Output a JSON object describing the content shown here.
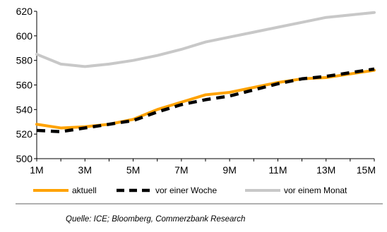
{
  "chart_data": {
    "type": "line",
    "x": [
      "1M",
      "2M",
      "3M",
      "4M",
      "5M",
      "6M",
      "7M",
      "8M",
      "9M",
      "10M",
      "11M",
      "12M",
      "13M",
      "14M",
      "15M"
    ],
    "x_tick_labels": [
      "1M",
      "3M",
      "5M",
      "7M",
      "9M",
      "11M",
      "13M",
      "15M"
    ],
    "y_ticks": [
      500,
      520,
      540,
      560,
      580,
      600,
      620
    ],
    "ylim": [
      500,
      620
    ],
    "legend_position": "bottom",
    "grid": false,
    "series": [
      {
        "name": "aktuell",
        "color": "#ffa200",
        "style": "solid",
        "values": [
          528,
          525,
          526,
          528,
          532,
          540,
          546,
          552,
          554,
          558,
          562,
          565,
          566,
          569,
          572
        ]
      },
      {
        "name": "vor einer Woche",
        "color": "#000000",
        "style": "dashed",
        "values": [
          523,
          522,
          525,
          528,
          531,
          538,
          544,
          548,
          551,
          556,
          561,
          565,
          567,
          570,
          573
        ]
      },
      {
        "name": "vor einem Monat",
        "color": "#c8c8c8",
        "style": "solid",
        "values": [
          585,
          577,
          575,
          577,
          580,
          584,
          589,
          595,
          599,
          603,
          607,
          611,
          615,
          617,
          619
        ]
      }
    ],
    "source": "Quelle: ICE; Bloomberg, Commerzbank Research"
  }
}
